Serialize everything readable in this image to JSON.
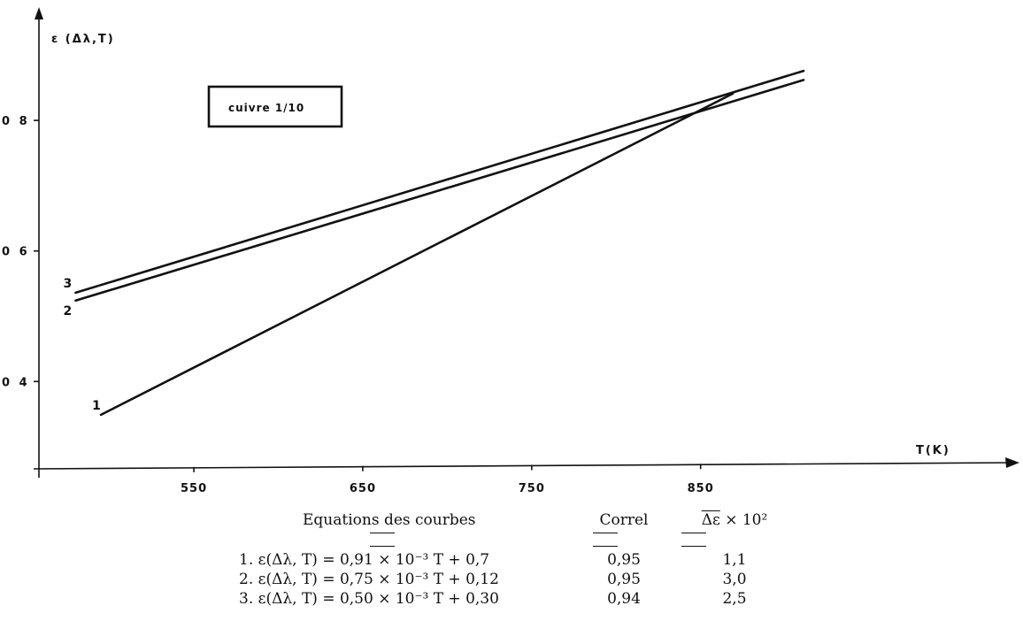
{
  "chart_data": {
    "type": "line",
    "ylabel": "ε (Δλ,T)",
    "xlabel": "T(K)",
    "x_ticks": [
      550,
      650,
      750,
      850
    ],
    "x_tick_labels": [
      "550",
      "650",
      "750",
      "850"
    ],
    "y_ticks": [
      0.4,
      0.6,
      0.8
    ],
    "y_tick_labels": [
      "0 4",
      "0 6",
      "0 8"
    ],
    "xlim": [
      485,
      1000
    ],
    "ylim": [
      0.315,
      0.975
    ],
    "grid": false,
    "inset_label": "cuivre 1/10",
    "series": [
      {
        "name": "1",
        "x": [
          495,
          869
        ],
        "y": [
          0.349,
          0.841
        ]
      },
      {
        "name": "2",
        "x": [
          480,
          911
        ],
        "y": [
          0.524,
          0.862
        ]
      },
      {
        "name": "3",
        "x": [
          480,
          911
        ],
        "y": [
          0.536,
          0.876
        ]
      }
    ]
  },
  "table": {
    "header_equations": "Equations des courbes",
    "header_correl": "Correl",
    "header_dev_symbol": "Δε",
    "header_dev_suffix": "× 10²",
    "rows": [
      {
        "number": "1.",
        "equation": "ε(Δλ, T) = 0,91 × 10⁻³ T + 0,7",
        "correl": "0,95",
        "dev": "1,1"
      },
      {
        "number": "2.",
        "equation": "ε(Δλ, T) = 0,75 × 10⁻³ T + 0,12",
        "correl": "0,95",
        "dev": "3,0"
      },
      {
        "number": "3.",
        "equation": "ε(Δλ, T) = 0,50 × 10⁻³ T + 0,30",
        "correl": "0,94",
        "dev": "2,5"
      }
    ]
  }
}
